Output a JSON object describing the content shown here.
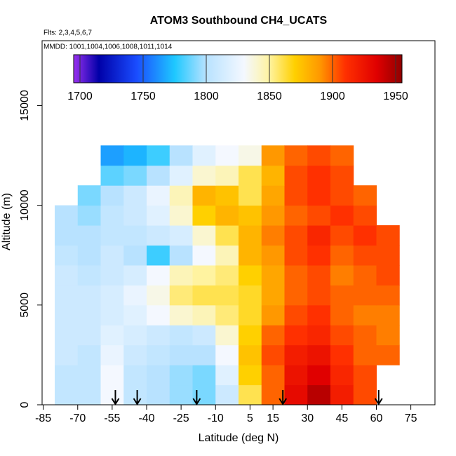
{
  "chart_data": {
    "type": "heatmap",
    "title": "ATOM3 Southbound CH4_UCATS",
    "subtitle": "Flts: 2,3,4,5,6,7",
    "annotation": "MMDD: 1001,1004,1006,1008,1011,1014",
    "x_label": "Latitude (deg N)",
    "y_label": "Altitude (m)",
    "xlim": [
      -85.5,
      85.5
    ],
    "xticks": [
      -85,
      -70,
      -55,
      -40,
      -25,
      -10,
      5,
      15,
      30,
      45,
      60,
      75
    ],
    "ylim": [
      0,
      18250
    ],
    "yticks": [
      0,
      5000,
      10000,
      15000
    ],
    "lat_bins": [
      -80,
      -70,
      -60,
      -50,
      -40,
      -30,
      -20,
      -10,
      0,
      10,
      20,
      30,
      40,
      50,
      60,
      70
    ],
    "alt_bins": [
      0,
      1000,
      2000,
      3000,
      4000,
      5000,
      6000,
      7000,
      8000,
      9000,
      10000,
      11000,
      12000,
      13000
    ],
    "z": [
      [
        1805,
        1805,
        1830,
        1805,
        1800,
        1795,
        1790,
        1810,
        1860,
        1900,
        1930,
        1945,
        1920,
        1905,
        null
      ],
      [
        1805,
        1805,
        1830,
        1805,
        1800,
        1795,
        1790,
        1820,
        1870,
        1900,
        1925,
        1935,
        1915,
        1905,
        null
      ],
      [
        1810,
        1805,
        1825,
        1810,
        1805,
        1800,
        1800,
        1830,
        1875,
        1905,
        1920,
        1925,
        1910,
        1900,
        1900
      ],
      [
        1810,
        1810,
        1820,
        1815,
        1810,
        1805,
        1810,
        1840,
        1870,
        1900,
        1910,
        1915,
        1905,
        1900,
        1895
      ],
      [
        1810,
        1810,
        1815,
        1820,
        1830,
        1840,
        1845,
        1855,
        1865,
        1890,
        1905,
        1910,
        1900,
        1895,
        1895
      ],
      [
        1810,
        1810,
        1815,
        1825,
        1835,
        1855,
        1860,
        1860,
        1865,
        1885,
        1900,
        1905,
        1900,
        1900,
        1900
      ],
      [
        1810,
        1805,
        1810,
        1815,
        1830,
        1845,
        1850,
        1855,
        1870,
        1885,
        1900,
        1905,
        1895,
        1900,
        1905
      ],
      [
        1805,
        1800,
        1810,
        1800,
        1780,
        1800,
        1830,
        1845,
        1880,
        1890,
        1905,
        1910,
        1900,
        1905,
        1905
      ],
      [
        1800,
        1800,
        1805,
        1805,
        1810,
        1815,
        1840,
        1860,
        1880,
        1895,
        1905,
        1915,
        1905,
        1910,
        1905
      ],
      [
        1800,
        1795,
        1805,
        1810,
        1820,
        1840,
        1870,
        1880,
        1875,
        1890,
        1900,
        1905,
        1910,
        1905,
        null
      ],
      [
        null,
        1790,
        1800,
        1810,
        1825,
        1845,
        1880,
        1875,
        1860,
        1885,
        1905,
        1910,
        1905,
        1900,
        null
      ],
      [
        null,
        null,
        1785,
        1790,
        1800,
        1820,
        1840,
        1845,
        1860,
        1880,
        1905,
        1910,
        1905,
        null,
        null
      ],
      [
        null,
        null,
        1765,
        1770,
        1780,
        1800,
        1820,
        1830,
        1835,
        1890,
        1900,
        1905,
        1900,
        null,
        null
      ]
    ],
    "zlim": [
      1695,
      1955
    ],
    "zticks": [
      1700,
      1750,
      1800,
      1850,
      1900,
      1950
    ],
    "colorscale": [
      [
        1695,
        "#9a30f0"
      ],
      [
        1715,
        "#0000a8"
      ],
      [
        1745,
        "#1a4dff"
      ],
      [
        1775,
        "#1ec8ff"
      ],
      [
        1800,
        "#b8e2ff"
      ],
      [
        1830,
        "#f4f8ff"
      ],
      [
        1850,
        "#fff3a0"
      ],
      [
        1870,
        "#ffd000"
      ],
      [
        1890,
        "#ff9800"
      ],
      [
        1910,
        "#ff3000"
      ],
      [
        1935,
        "#e00000"
      ],
      [
        1955,
        "#900000"
      ]
    ],
    "arrows_lat": [
      -53.6,
      -44.1,
      -18.2,
      19.3,
      61
    ]
  }
}
